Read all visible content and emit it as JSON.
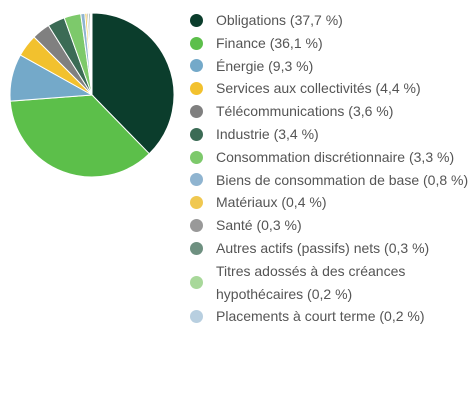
{
  "chart_data": {
    "type": "pie",
    "categories": [
      "Obligations (37,7 %)",
      "Finance (36,1 %)",
      "Énergie (9,3 %)",
      "Services aux collectivités (4,4 %)",
      "Télécommunications (3,6 %)",
      "Industrie (3,4 %)",
      "Consommation discrétionnaire (3,3 %)",
      "Biens de consommation de base (0,8 %)",
      "Matériaux (0,4 %)",
      "Santé (0,3 %)",
      "Autres actifs (passifs) nets (0,3 %)",
      "Titres adossés à des créances hypothécaires (0,2 %)",
      "Placements à court terme (0,2 %)"
    ],
    "values": [
      37.7,
      36.1,
      9.3,
      4.4,
      3.6,
      3.4,
      3.3,
      0.8,
      0.4,
      0.3,
      0.3,
      0.2,
      0.2
    ],
    "colors": [
      "#0b3d2c",
      "#5cbf4a",
      "#74a9c9",
      "#f2c12e",
      "#808080",
      "#3b6b55",
      "#7dc96b",
      "#8fb4d0",
      "#f0c850",
      "#999999",
      "#6e9080",
      "#a8d89a",
      "#b8cfe0"
    ]
  }
}
